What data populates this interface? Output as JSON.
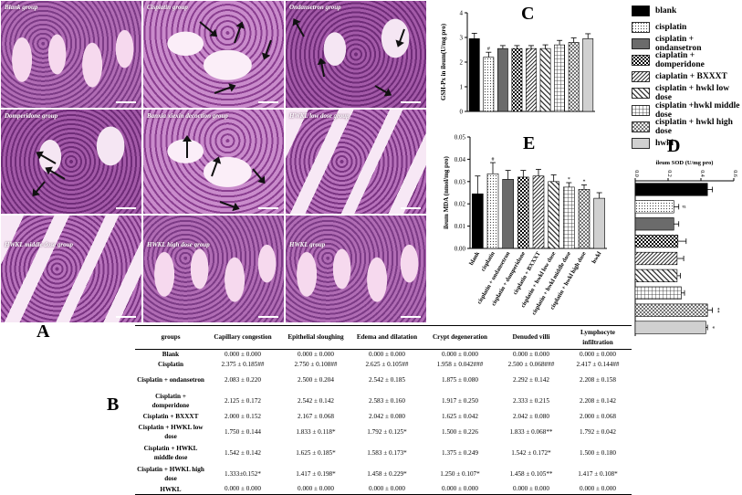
{
  "panels": {
    "A": "A",
    "B": "B",
    "C": "C",
    "D": "D",
    "E": "E"
  },
  "micrographs": [
    {
      "label": "Blank group"
    },
    {
      "label": "Cisplatin group"
    },
    {
      "label": "Ondansetron group"
    },
    {
      "label": "Domperidone group"
    },
    {
      "label": "Banxia xiexin decoction group"
    },
    {
      "label": "HWKL low dose group"
    },
    {
      "label": "HWKL middle dose group"
    },
    {
      "label": "HWKL high dose group"
    },
    {
      "label": "HWKL group"
    }
  ],
  "legend": [
    {
      "label": "blank",
      "pattern": "black"
    },
    {
      "label": "cisplatin",
      "pattern": "dots"
    },
    {
      "label": "cisplatin + ondansetron",
      "pattern": "dark-gray"
    },
    {
      "label": "ciaplatin + domperidone",
      "pattern": "checker"
    },
    {
      "label": "ciaplatin + BXXXT",
      "pattern": "diagonal"
    },
    {
      "label": "cisplatin + hwkl low dose",
      "pattern": "wide-diagonal"
    },
    {
      "label": "cisplatin +hwkl middle dose",
      "pattern": "grid"
    },
    {
      "label": "cisplatin + hwkl high dose",
      "pattern": "diamond"
    },
    {
      "label": "hwkl",
      "pattern": "light-gray"
    }
  ],
  "chart_data": [
    {
      "panel": "C",
      "type": "bar",
      "ylabel": "GSH-Px in ileum(U/mg pro)",
      "ylim": [
        0,
        4
      ],
      "yticks": [
        "0",
        "1",
        "2",
        "3",
        "4"
      ],
      "values": [
        2.95,
        2.2,
        2.55,
        2.55,
        2.55,
        2.55,
        2.7,
        2.8,
        2.95
      ],
      "errors": [
        0.22,
        0.2,
        0.12,
        0.12,
        0.12,
        0.15,
        0.18,
        0.18,
        0.2
      ],
      "marks": [
        "",
        "#",
        "",
        "",
        "",
        "",
        "",
        "",
        ""
      ]
    },
    {
      "panel": "E",
      "type": "bar",
      "ylabel": "ileum MDA (nmol/mg pro)",
      "ylim": [
        0,
        0.05
      ],
      "yticks": [
        "0.00",
        "0.01",
        "0.02",
        "0.03",
        "0.04",
        "0.05"
      ],
      "categories": [
        "blank",
        "cisplatin",
        "cisplatin + ondansetron",
        "cisplatin + domperidone",
        "cisplatin + BXXXT",
        "cisplatin + hwkl low dose",
        "cisplatin + hwkl middle dose",
        "cisplatin + hwkl high dose",
        "hwkl"
      ],
      "values": [
        0.0245,
        0.0335,
        0.031,
        0.032,
        0.0325,
        0.03,
        0.0275,
        0.0265,
        0.0225
      ],
      "errors": [
        0.008,
        0.005,
        0.004,
        0.003,
        0.003,
        0.003,
        0.002,
        0.002,
        0.0025
      ],
      "marks": [
        "",
        "#",
        "",
        "",
        "",
        "",
        "*",
        "*",
        ""
      ]
    },
    {
      "panel": "D",
      "type": "bar",
      "orientation": "horizontal",
      "title": "ileum SOD (U/mg pro)",
      "xlim": [
        0,
        0.6
      ],
      "xticks": [
        "0.0",
        "0.2",
        "0.4",
        "0.6"
      ],
      "values": [
        0.44,
        0.235,
        0.235,
        0.26,
        0.255,
        0.255,
        0.28,
        0.44,
        0.43
      ],
      "errors": [
        0.03,
        0.03,
        0.03,
        0.05,
        0.04,
        0.02,
        0.02,
        0.03,
        0.01
      ],
      "marks": [
        "",
        "#",
        "",
        "",
        "",
        "",
        "",
        "**",
        "*"
      ]
    }
  ],
  "table": {
    "headers": [
      "groups",
      "Capillary congestion",
      "Epithelial sloughing",
      "Edema and dilatation",
      "Crypt degeneration",
      "Denuded villi",
      "Lymphocyte infiltration"
    ],
    "rows": [
      [
        "Blank",
        "0.000 ± 0.000",
        "0.000 ± 0.000",
        "0.000 ± 0.000",
        "0.000 ± 0.000",
        "0.000 ± 0.000",
        "0.000 ± 0.000"
      ],
      [
        "Cisplatin",
        "2.375 ± 0.185##",
        "2.750 ± 0.108##",
        "2.625 ± 0.105##",
        "1.958 ± 0.042###",
        "2.500 ± 0.068###",
        "2.417 ± 0.144##"
      ],
      [
        "Cisplatin + ondansetron",
        "2.083 ± 0.220",
        "2.500 ± 0.204",
        "2.542 ± 0.185",
        "1.875 ± 0.080",
        "2.292 ± 0.142",
        "2.208 ± 0.158"
      ],
      [
        "Cisplatin + domperidone",
        "2.125 ± 0.172",
        "2.542 ± 0.142",
        "2.583 ± 0.160",
        "1.917 ± 0.250",
        "2.333 ± 0.215",
        "2.208 ± 0.142"
      ],
      [
        "Cisplatin + BXXXT",
        "2.000 ± 0.152",
        "2.167 ± 0.068",
        "2.042 ± 0.080",
        "1.625 ± 0.042",
        "2.042 ± 0.080",
        "2.000 ± 0.068"
      ],
      [
        "Cisplatin + HWKL low dose",
        "1.750 ± 0.144",
        "1.833 ± 0.118*",
        "1.792 ± 0.125*",
        "1.500 ± 0.226",
        "1.833 ± 0.068**",
        "1.792 ± 0.042"
      ],
      [
        "Cisplatin + HWKL middle dose",
        "1.542 ± 0.142",
        "1.625 ± 0.185*",
        "1.583 ± 0.173*",
        "1.375 ± 0.249",
        "1.542 ± 0.172*",
        "1.500 ± 0.180"
      ],
      [
        "Cisplatin + HWKL high dose",
        "1.333±0.152*",
        "1.417 ± 0.198*",
        "1.458 ± 0.229*",
        "1.250 ± 0.107*",
        "1.458 ± 0.105**",
        "1.417 ± 0.108*"
      ],
      [
        "HWKL",
        "0.000 ± 0.000",
        "0.000 ± 0.000",
        "0.000 ± 0.000",
        "0.000 ± 0.000",
        "0.000 ± 0.000",
        "0.000 ± 0.000"
      ]
    ]
  }
}
